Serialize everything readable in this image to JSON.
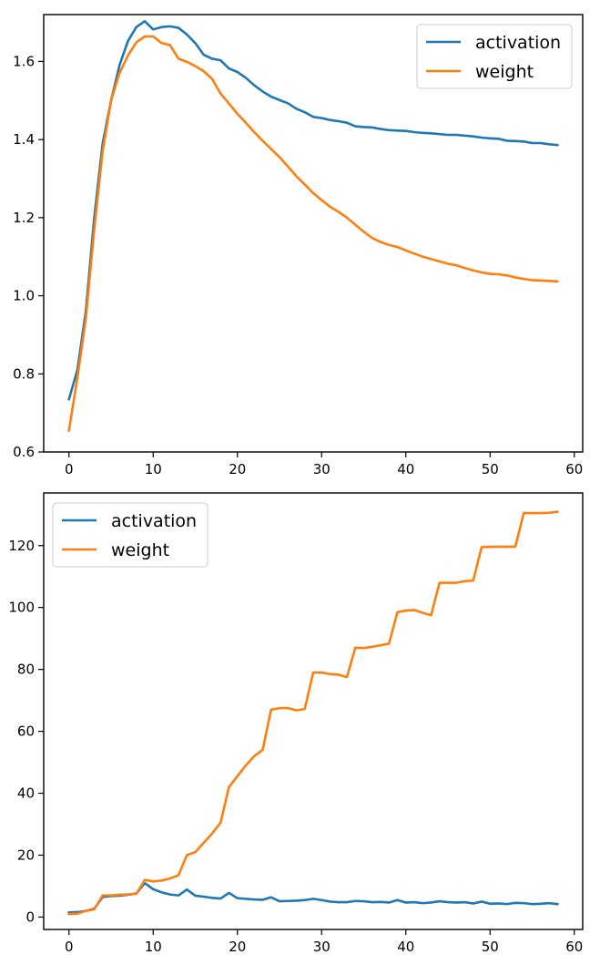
{
  "chart_data": [
    {
      "type": "line",
      "title": "",
      "xlabel": "",
      "ylabel": "",
      "xlim": [
        -3,
        61
      ],
      "ylim": [
        0.6,
        1.72
      ],
      "xticks": [
        0,
        10,
        20,
        30,
        40,
        50,
        60
      ],
      "yticks": [
        0.6,
        0.8,
        1.0,
        1.2,
        1.4,
        1.6
      ],
      "ytick_labels": [
        "0.6",
        "0.8",
        "1.0",
        "1.2",
        "1.4",
        "1.6"
      ],
      "xtick_labels": [
        "0",
        "10",
        "20",
        "30",
        "40",
        "50",
        "60"
      ],
      "grid": false,
      "legend_position": "top-right",
      "series": [
        {
          "name": "activation",
          "color": "#1f77b4",
          "x": [
            0,
            1,
            2,
            3,
            4,
            5,
            6,
            7,
            8,
            9,
            10,
            11,
            12,
            13,
            14,
            15,
            16,
            17,
            18,
            19,
            20,
            21,
            22,
            23,
            24,
            25,
            26,
            27,
            28,
            29,
            30,
            31,
            32,
            33,
            34,
            35,
            36,
            37,
            38,
            39,
            40,
            41,
            42,
            43,
            44,
            45,
            46,
            47,
            48,
            49,
            50,
            51,
            52,
            53,
            54,
            55,
            56,
            57,
            58
          ],
          "values": [
            0.735,
            0.81,
            0.96,
            1.2,
            1.39,
            1.5,
            1.59,
            1.652,
            1.688,
            1.703,
            1.682,
            1.688,
            1.69,
            1.686,
            1.669,
            1.647,
            1.617,
            1.607,
            1.603,
            1.582,
            1.573,
            1.558,
            1.539,
            1.523,
            1.51,
            1.501,
            1.493,
            1.479,
            1.47,
            1.458,
            1.455,
            1.45,
            1.447,
            1.443,
            1.434,
            1.432,
            1.431,
            1.427,
            1.424,
            1.423,
            1.422,
            1.419,
            1.417,
            1.416,
            1.414,
            1.412,
            1.412,
            1.41,
            1.408,
            1.405,
            1.403,
            1.402,
            1.397,
            1.396,
            1.395,
            1.391,
            1.391,
            1.388,
            1.386
          ]
        },
        {
          "name": "weight",
          "color": "#ff7f0e",
          "x": [
            0,
            1,
            2,
            3,
            4,
            5,
            6,
            7,
            8,
            9,
            10,
            11,
            12,
            13,
            14,
            15,
            16,
            17,
            18,
            19,
            20,
            21,
            22,
            23,
            24,
            25,
            26,
            27,
            28,
            29,
            30,
            31,
            32,
            33,
            34,
            35,
            36,
            37,
            38,
            39,
            40,
            41,
            42,
            43,
            44,
            45,
            46,
            47,
            48,
            49,
            50,
            51,
            52,
            53,
            54,
            55,
            56,
            57,
            58
          ],
          "values": [
            0.655,
            0.79,
            0.94,
            1.17,
            1.37,
            1.5,
            1.57,
            1.615,
            1.649,
            1.664,
            1.664,
            1.647,
            1.642,
            1.607,
            1.599,
            1.588,
            1.575,
            1.555,
            1.518,
            1.492,
            1.466,
            1.443,
            1.419,
            1.397,
            1.376,
            1.355,
            1.331,
            1.306,
            1.285,
            1.263,
            1.245,
            1.228,
            1.215,
            1.2,
            1.182,
            1.164,
            1.148,
            1.138,
            1.13,
            1.125,
            1.116,
            1.108,
            1.1,
            1.094,
            1.088,
            1.082,
            1.078,
            1.071,
            1.065,
            1.06,
            1.056,
            1.055,
            1.052,
            1.047,
            1.043,
            1.04,
            1.039,
            1.038,
            1.037
          ]
        }
      ]
    },
    {
      "type": "line",
      "title": "",
      "xlabel": "",
      "ylabel": "",
      "xlim": [
        -3,
        61
      ],
      "ylim": [
        -4,
        137
      ],
      "xticks": [
        0,
        10,
        20,
        30,
        40,
        50,
        60
      ],
      "yticks": [
        0,
        20,
        40,
        60,
        80,
        100,
        120
      ],
      "ytick_labels": [
        "0",
        "20",
        "40",
        "60",
        "80",
        "100",
        "120"
      ],
      "xtick_labels": [
        "0",
        "10",
        "20",
        "30",
        "40",
        "50",
        "60"
      ],
      "grid": false,
      "legend_position": "top-left",
      "series": [
        {
          "name": "activation",
          "color": "#1f77b4",
          "x": [
            0,
            1,
            2,
            3,
            4,
            5,
            6,
            7,
            8,
            9,
            10,
            11,
            12,
            13,
            14,
            15,
            16,
            17,
            18,
            19,
            20,
            21,
            22,
            23,
            24,
            25,
            26,
            27,
            28,
            29,
            30,
            31,
            32,
            33,
            34,
            35,
            36,
            37,
            38,
            39,
            40,
            41,
            42,
            43,
            44,
            45,
            46,
            47,
            48,
            49,
            50,
            51,
            52,
            53,
            54,
            55,
            56,
            57,
            58
          ],
          "values": [
            1.5,
            1.6,
            2.0,
            2.7,
            6.5,
            6.8,
            6.9,
            7.2,
            7.6,
            11.0,
            9.0,
            8.0,
            7.3,
            7.0,
            8.9,
            6.9,
            6.6,
            6.2,
            6.0,
            7.8,
            6.1,
            5.9,
            5.7,
            5.6,
            6.4,
            5.1,
            5.2,
            5.3,
            5.5,
            5.9,
            5.5,
            5.0,
            4.8,
            4.8,
            5.2,
            5.1,
            4.8,
            4.9,
            4.7,
            5.5,
            4.7,
            4.8,
            4.5,
            4.7,
            5.1,
            4.8,
            4.7,
            4.8,
            4.4,
            5.0,
            4.3,
            4.4,
            4.2,
            4.6,
            4.5,
            4.2,
            4.3,
            4.5,
            4.2
          ]
        },
        {
          "name": "weight",
          "color": "#ff7f0e",
          "x": [
            0,
            1,
            2,
            3,
            4,
            5,
            6,
            7,
            8,
            9,
            10,
            11,
            12,
            13,
            14,
            15,
            16,
            17,
            18,
            19,
            20,
            21,
            22,
            23,
            24,
            25,
            26,
            27,
            28,
            29,
            30,
            31,
            32,
            33,
            34,
            35,
            36,
            37,
            38,
            39,
            40,
            41,
            42,
            43,
            44,
            45,
            46,
            47,
            48,
            49,
            50,
            51,
            52,
            53,
            54,
            55,
            56,
            57,
            58
          ],
          "values": [
            1.0,
            1.1,
            2.0,
            2.5,
            7.0,
            7.0,
            7.2,
            7.3,
            7.5,
            12.0,
            11.5,
            11.8,
            12.5,
            13.5,
            20.0,
            21.0,
            24.0,
            27.0,
            30.5,
            42.0,
            45.5,
            49.0,
            52.0,
            54.0,
            67.0,
            67.5,
            67.5,
            66.8,
            67.2,
            79.0,
            79.0,
            78.5,
            78.3,
            77.5,
            87.0,
            86.9,
            87.3,
            87.8,
            88.3,
            98.5,
            99.0,
            99.2,
            98.3,
            97.5,
            108.0,
            108.0,
            108.0,
            108.5,
            108.7,
            119.5,
            119.6,
            119.6,
            119.6,
            119.7,
            130.5,
            130.5,
            130.5,
            130.6,
            130.9
          ]
        }
      ]
    }
  ]
}
